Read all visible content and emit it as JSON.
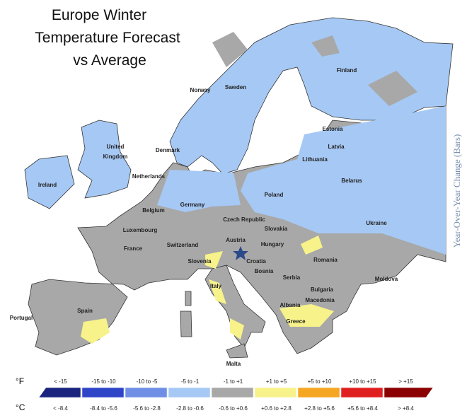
{
  "title_lines": [
    "Europe Winter",
    "Temperature Forecast",
    "vs Average"
  ],
  "side_label": "Year-Over-Year Change (Bars)",
  "countries": [
    "Finland",
    "Norway",
    "Sweden",
    "Estonia",
    "Latvia",
    "Lithuania",
    [
      "United",
      "Kingdom"
    ],
    "Denmark",
    "Belarus",
    "Netherlands",
    "Ireland",
    "Poland",
    "Germany",
    "Belgium",
    "Luxembourg",
    "Czech Republic",
    "Slovakia",
    "Ukraine",
    "France",
    "Switzerland",
    "Austria",
    "Hungary",
    "Slovenia",
    "Croatia",
    "Romania",
    "Moldova",
    "Bosnia",
    "Serbia",
    "Italy",
    "Bulgaria",
    "Macedonia",
    "Albania",
    "Greece",
    "Portugal",
    "Spain",
    "Malta"
  ],
  "legend": {
    "f_unit": "°F",
    "c_unit": "°C",
    "items": [
      {
        "f": "< -15",
        "c": "< -8.4",
        "color": "#1a237e"
      },
      {
        "f": "-15 to -10",
        "c": "-8.4 to -5.6",
        "color": "#2f45c8"
      },
      {
        "f": "-10 to -5",
        "c": "-5.6 to -2.8",
        "color": "#6f8fe6"
      },
      {
        "f": "-5 to -1",
        "c": "-2.8 to -0.6",
        "color": "#a6c8f4"
      },
      {
        "f": "-1 to +1",
        "c": "-0.6 to +0.6",
        "color": "#a8a8a8"
      },
      {
        "f": "+1 to +5",
        "c": "+0.6 to +2.8",
        "color": "#f7f28a"
      },
      {
        "f": "+5 to +10",
        "c": "+2.8 to +5.6",
        "color": "#f5a623"
      },
      {
        "f": "+10 to +15",
        "c": "+5.6 to +8.4",
        "color": "#e02020"
      },
      {
        "f": "> +15",
        "c": "> +8.4",
        "color": "#8b0000"
      }
    ]
  }
}
